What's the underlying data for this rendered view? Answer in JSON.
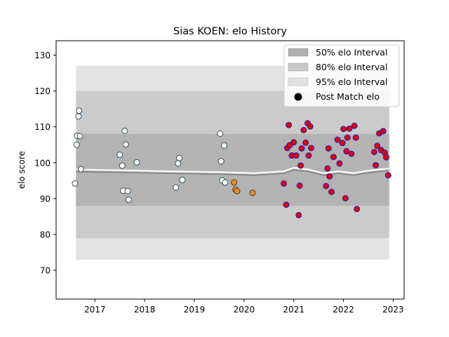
{
  "chart_data": {
    "type": "scatter",
    "title": "Sias KOEN: elo History",
    "xlabel": "",
    "ylabel": "elo score",
    "xlim": [
      2016.22,
      2023.22
    ],
    "ylim": [
      62,
      134
    ],
    "x_ticks": [
      2017,
      2018,
      2019,
      2020,
      2021,
      2022,
      2023
    ],
    "y_ticks": [
      70,
      80,
      90,
      100,
      110,
      120,
      130
    ],
    "grid": false,
    "legend_position": "top-right",
    "legend": [
      "50% elo Interval",
      "80% elo Interval",
      "95% elo Interval",
      "Post Match elo"
    ],
    "colors": {
      "band50": "#b0b0b0",
      "band80": "#c8c8c8",
      "band95": "#e0e0e0",
      "mean_line": "#808080",
      "white_line": "#ffffff",
      "point_white_fill": "#ffffff",
      "point_white_edge": "#2f4f5f",
      "point_orange_fill": "#ff8c1a",
      "point_orange_edge": "#3a3a3a",
      "point_red_fill": "#e00000",
      "point_red_edge": "#2020c0"
    },
    "interval_50": {
      "x": [
        2016.62,
        2022.92
      ],
      "lower": 88,
      "upper": 108
    },
    "interval_80": {
      "x": [
        2016.62,
        2022.92
      ],
      "lower": 79,
      "upper": 120
    },
    "interval_95": {
      "x": [
        2016.62,
        2022.92
      ],
      "lower": 73,
      "upper": 127
    },
    "mean_line": {
      "x": [
        2016.62,
        2017.5,
        2018.5,
        2019.5,
        2020.2,
        2020.8,
        2021.0,
        2021.3,
        2021.6,
        2021.9,
        2022.2,
        2022.5,
        2022.92
      ],
      "y": [
        97.5,
        97.3,
        97.0,
        96.8,
        96.5,
        97.0,
        98.0,
        97.5,
        96.5,
        97.0,
        96.5,
        97.2,
        97.8
      ]
    },
    "series": [
      {
        "name": "Post Match elo",
        "style": "white",
        "x": [
          2016.6,
          2016.63,
          2016.64,
          2016.67,
          2016.68,
          2016.7,
          2016.72,
          2017.5,
          2017.55,
          2017.57,
          2017.6,
          2017.62,
          2017.66,
          2017.68,
          2017.84,
          2018.63,
          2018.67,
          2018.7,
          2018.76,
          2019.52,
          2019.54,
          2019.56,
          2019.6,
          2019.62
        ],
        "y": [
          94.2,
          105,
          107.5,
          112.9,
          114.5,
          107.4,
          98.2,
          102.2,
          99.2,
          92.2,
          108.9,
          105.1,
          92.1,
          89.7,
          100.1,
          93.1,
          99.8,
          101.3,
          95.2,
          108.1,
          100.4,
          95.1,
          104.8,
          94.5
        ]
      },
      {
        "name": "",
        "style": "orange",
        "x": [
          2019.8,
          2019.83,
          2019.86,
          2020.17
        ],
        "y": [
          94.5,
          92.5,
          92.1,
          91.6
        ]
      },
      {
        "name": "",
        "style": "red",
        "x": [
          2020.8,
          2020.85,
          2020.87,
          2020.9,
          2020.92,
          2020.96,
          2021.0,
          2021.05,
          2021.1,
          2021.12,
          2021.14,
          2021.16,
          2021.2,
          2021.24,
          2021.28,
          2021.3,
          2021.33,
          2021.35,
          2021.65,
          2021.68,
          2021.7,
          2021.72,
          2021.76,
          2021.8,
          2021.88,
          2021.92,
          2021.98,
          2022.0,
          2022.04,
          2022.06,
          2022.08,
          2022.12,
          2022.16,
          2022.22,
          2022.25,
          2022.27,
          2022.62,
          2022.65,
          2022.68,
          2022.72,
          2022.76,
          2022.8,
          2022.83,
          2022.86,
          2022.9
        ],
        "y": [
          94.2,
          88.3,
          104.1,
          110.5,
          104.9,
          102,
          105.7,
          102,
          85.4,
          93.6,
          99.2,
          104,
          109.1,
          105.6,
          111,
          102,
          110.1,
          104.1,
          93.5,
          98.4,
          104,
          96.2,
          91.9,
          101.6,
          106.4,
          99.8,
          105.5,
          109.4,
          90.1,
          103.2,
          107,
          109.5,
          102.5,
          110.3,
          107,
          87.1,
          103,
          99.3,
          104.7,
          108.2,
          103.5,
          108.8,
          102.8,
          101.5,
          96.5
        ]
      }
    ]
  }
}
